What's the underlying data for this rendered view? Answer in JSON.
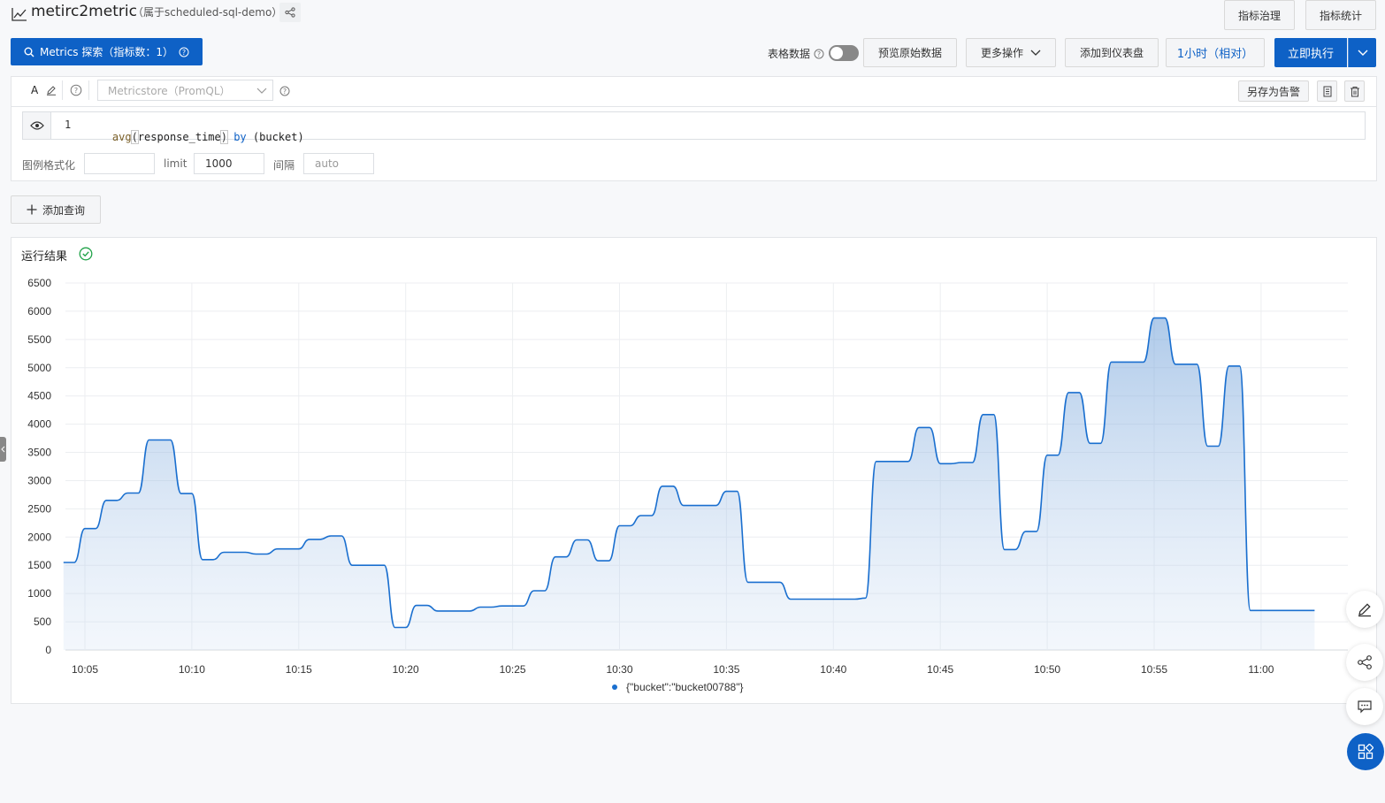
{
  "header": {
    "title": "metirc2metric",
    "subtitle": "（属于scheduled-sql-demo）",
    "governance_label": "指标治理",
    "stats_label": "指标统计"
  },
  "toolbar": {
    "explore_label": "Metrics 探索（指标数：1）",
    "table_data_label": "表格数据",
    "table_data_on": false,
    "preview_raw_label": "预览原始数据",
    "more_actions_label": "更多操作",
    "add_to_dashboard_label": "添加到仪表盘",
    "time_range_label": "1小时（相对）",
    "run_label": "立即执行"
  },
  "query": {
    "store_placeholder": "Metricstore（PromQL）",
    "save_alert_label": "另存为告警",
    "line_number": "1",
    "code": {
      "fn": "avg",
      "open": "(",
      "metric": "response_time",
      "close": ")",
      "kw": " by ",
      "group": "(bucket)"
    },
    "legend_format_label": "图例格式化",
    "legend_format_value": "",
    "limit_label": "limit",
    "limit_value": "1000",
    "interval_label": "间隔",
    "interval_placeholder": "auto"
  },
  "add_query_label": "添加查询",
  "result": {
    "title": "运行结果"
  },
  "colors": {
    "accent": "#0e61c6",
    "line": "#1a6fcf",
    "success": "#22a34a"
  },
  "chart_data": {
    "type": "area",
    "title": "",
    "xlabel": "",
    "ylabel": "",
    "ylim": [
      0,
      6500
    ],
    "yticks": [
      0,
      500,
      1000,
      1500,
      2000,
      2500,
      3000,
      3500,
      4000,
      4500,
      5000,
      5500,
      6000,
      6500
    ],
    "xticks": [
      "10:05",
      "10:10",
      "10:15",
      "10:20",
      "10:25",
      "10:30",
      "10:35",
      "10:40",
      "10:45",
      "10:50",
      "10:55",
      "11:00"
    ],
    "grid": true,
    "legend_position": "bottom",
    "series": [
      {
        "name": "{\"bucket\":\"bucket00788\"}",
        "x": [
          "10:04",
          "10:04:30",
          "10:05",
          "10:05:30",
          "10:06",
          "10:06:30",
          "10:07",
          "10:07:30",
          "10:08",
          "10:08:30",
          "10:09",
          "10:09:30",
          "10:10",
          "10:10:30",
          "10:11",
          "10:11:30",
          "10:12",
          "10:12:30",
          "10:13",
          "10:13:30",
          "10:14",
          "10:14:30",
          "10:15",
          "10:15:30",
          "10:16",
          "10:16:30",
          "10:17",
          "10:17:30",
          "10:18",
          "10:18:30",
          "10:19",
          "10:19:30",
          "10:20",
          "10:20:30",
          "10:21",
          "10:21:30",
          "10:22",
          "10:22:30",
          "10:23",
          "10:23:30",
          "10:24",
          "10:24:30",
          "10:25",
          "10:25:30",
          "10:26",
          "10:26:30",
          "10:27",
          "10:27:30",
          "10:28",
          "10:28:30",
          "10:29",
          "10:29:30",
          "10:30",
          "10:30:30",
          "10:31",
          "10:31:30",
          "10:32",
          "10:32:30",
          "10:33",
          "10:33:30",
          "10:34",
          "10:34:30",
          "10:35",
          "10:35:30",
          "10:36",
          "10:36:30",
          "10:37",
          "10:37:30",
          "10:38",
          "10:38:30",
          "10:39",
          "10:39:30",
          "10:40",
          "10:40:30",
          "10:41",
          "10:41:30",
          "10:42",
          "10:42:30",
          "10:43",
          "10:43:30",
          "10:44",
          "10:44:30",
          "10:45",
          "10:45:30",
          "10:46",
          "10:46:30",
          "10:47",
          "10:47:30",
          "10:48",
          "10:48:30",
          "10:49",
          "10:49:30",
          "10:50",
          "10:50:30",
          "10:51",
          "10:51:30",
          "10:52",
          "10:52:30",
          "10:53",
          "10:53:30",
          "10:54",
          "10:54:30",
          "10:55",
          "10:55:30",
          "10:56",
          "10:56:30",
          "10:57",
          "10:57:30",
          "10:58",
          "10:58:30",
          "10:59",
          "10:59:30",
          "11:00",
          "11:00:30",
          "11:01",
          "11:01:30",
          "11:02",
          "11:02:30"
        ],
        "values": [
          1550,
          1550,
          2150,
          2150,
          2650,
          2650,
          2780,
          2780,
          3720,
          3720,
          3720,
          2770,
          2770,
          1600,
          1600,
          1730,
          1730,
          1730,
          1700,
          1700,
          1790,
          1790,
          1790,
          1960,
          1960,
          2020,
          2020,
          1500,
          1500,
          1500,
          1500,
          400,
          400,
          790,
          790,
          690,
          690,
          690,
          690,
          760,
          760,
          780,
          780,
          780,
          1050,
          1050,
          1650,
          1650,
          1950,
          1950,
          1580,
          1580,
          2200,
          2200,
          2380,
          2380,
          2900,
          2900,
          2560,
          2560,
          2560,
          2560,
          2810,
          2810,
          1200,
          1200,
          1200,
          1200,
          900,
          900,
          900,
          900,
          900,
          900,
          900,
          920,
          3340,
          3340,
          3340,
          3340,
          3940,
          3940,
          3300,
          3300,
          3320,
          3320,
          4170,
          4170,
          1780,
          1780,
          2100,
          2100,
          3450,
          3450,
          4560,
          4560,
          3660,
          3660,
          5100,
          5100,
          5100,
          5100,
          5880,
          5880,
          5060,
          5060,
          5060,
          3610,
          3610,
          5030,
          5030,
          700,
          700,
          700,
          700,
          700,
          700,
          700
        ]
      }
    ]
  }
}
